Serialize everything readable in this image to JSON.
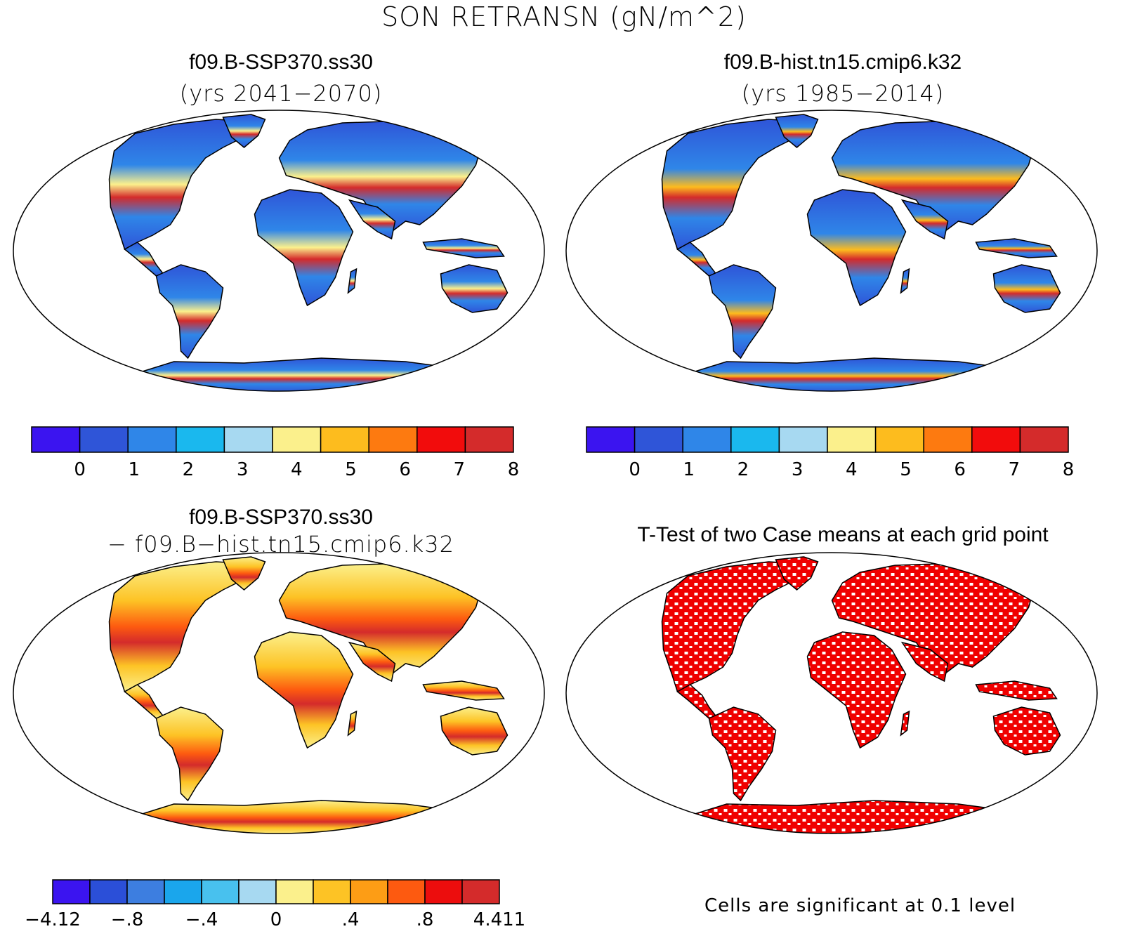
{
  "title": "SON RETRANSN (gN/m^2)",
  "panels": [
    {
      "title": "f09.B-SSP370.ss30",
      "subtitle": "(yrs 2041−2070)"
    },
    {
      "title": "f09.B-hist.tn15.cmip6.k32",
      "subtitle": "(yrs 1985−2014)"
    },
    {
      "title": "f09.B-SSP370.ss30",
      "subtitle": "− f09.B−hist.tn15.cmip6.k32"
    },
    {
      "title": "T-Test of two Case means at each grid point",
      "subtitle": ""
    }
  ],
  "colorbars": {
    "abs": {
      "colors": [
        "#3b14f0",
        "#2f55d8",
        "#2f86e8",
        "#1ab8ee",
        "#a7d9f1",
        "#fbf08c",
        "#fdbc1e",
        "#fd7a10",
        "#f20c0c",
        "#d42b2b"
      ],
      "labels": [
        "0",
        "1",
        "2",
        "3",
        "4",
        "5",
        "6",
        "7",
        "8"
      ]
    },
    "diff": {
      "colors": [
        "#3b14f0",
        "#2b4fd8",
        "#3d7ee0",
        "#1aa6ec",
        "#48c1ee",
        "#a7d9f1",
        "#fbf08c",
        "#fdc325",
        "#fd9d15",
        "#fd5a10",
        "#ec0d0d",
        "#d42b2b"
      ],
      "labels": [
        "−4.12",
        "−.8",
        "−.4",
        "0",
        ".4",
        ".8",
        "4.411"
      ]
    }
  },
  "significance_note": "Cells are significant at 0.1 level"
}
